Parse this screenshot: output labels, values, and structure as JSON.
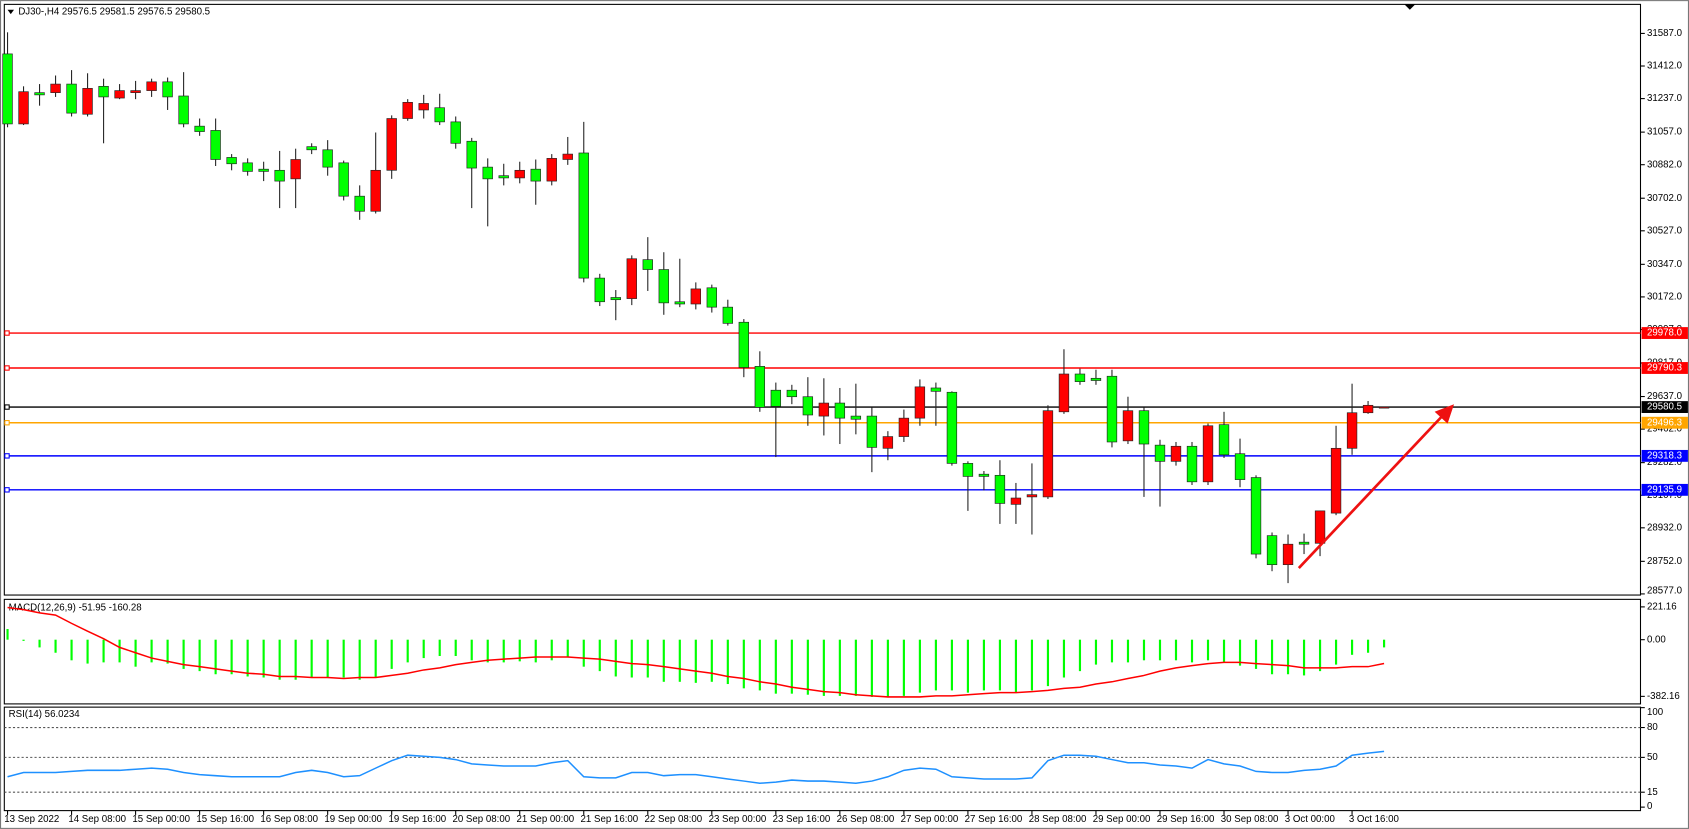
{
  "chart_data": [
    {
      "type": "candlestick",
      "title": "DJ30-,H4  29576.5 29581.5 29576.5 29580.5",
      "categories": [
        "13 Sep 2022",
        null,
        null,
        null,
        "14 Sep 08:00",
        null,
        null,
        null,
        "15 Sep 00:00",
        null,
        null,
        null,
        "15 Sep 16:00",
        null,
        null,
        null,
        "16 Sep 08:00",
        null,
        null,
        null,
        "19 Sep 00:00",
        null,
        null,
        null,
        "19 Sep 16:00",
        null,
        null,
        null,
        "20 Sep 08:00",
        null,
        null,
        null,
        "21 Sep 00:00",
        null,
        null,
        null,
        "21 Sep 16:00",
        null,
        null,
        null,
        "22 Sep 08:00",
        null,
        null,
        null,
        "23 Sep 00:00",
        null,
        null,
        null,
        "23 Sep 16:00",
        null,
        null,
        null,
        "26 Sep 08:00",
        null,
        null,
        null,
        "27 Sep 00:00",
        null,
        null,
        null,
        "27 Sep 16:00",
        null,
        null,
        null,
        "28 Sep 08:00",
        null,
        null,
        null,
        "29 Sep 00:00",
        null,
        null,
        null,
        "29 Sep 16:00",
        null,
        null,
        null,
        "30 Sep 08:00",
        null,
        null,
        null,
        "3 Oct 00:00",
        null,
        null,
        null,
        "3 Oct 16:00",
        null,
        null
      ],
      "open": [
        31477,
        31101,
        31269,
        31269,
        31315,
        31153,
        31303,
        31240,
        31269,
        31280,
        31327,
        31251,
        31089,
        31066,
        30921,
        30892,
        30858,
        30852,
        30806,
        30979,
        30962,
        30892,
        30713,
        30632,
        30852,
        31130,
        31176,
        31188,
        31112,
        31008,
        30869,
        30823,
        30811,
        30858,
        30794,
        30910,
        30945,
        30273,
        30169,
        30163,
        30372,
        30319,
        30146,
        30134,
        30221,
        30117,
        30036,
        29799,
        29671,
        29671,
        29636,
        29532,
        29602,
        29532,
        29532,
        29359,
        29422,
        29521,
        29683,
        29660,
        29278,
        29220,
        29214,
        29058,
        29098,
        29098,
        29555,
        29758,
        29735,
        29746,
        29399,
        29561,
        29376,
        29289,
        29370,
        29179,
        29486,
        29330,
        29202,
        28890,
        28734,
        28855,
        28849,
        29011,
        29359,
        29550,
        29576.5
      ],
      "high": [
        31593,
        31303,
        31315,
        31361,
        31390,
        31373,
        31344,
        31315,
        31332,
        31344,
        31350,
        31379,
        31130,
        31130,
        30939,
        30916,
        30898,
        30956,
        30968,
        30997,
        31014,
        30904,
        30771,
        31055,
        31147,
        31234,
        31257,
        31263,
        31141,
        31026,
        30916,
        30887,
        30898,
        30910,
        30939,
        31031,
        31112,
        30296,
        30209,
        30395,
        30493,
        30412,
        30377,
        30250,
        30238,
        30157,
        30053,
        29880,
        29712,
        29700,
        29741,
        29735,
        29683,
        29706,
        29579,
        29451,
        29567,
        29729,
        29712,
        29665,
        29289,
        29237,
        29295,
        29173,
        29278,
        29590,
        29891,
        29787,
        29781,
        29781,
        29636,
        29579,
        29405,
        29393,
        29393,
        29492,
        29555,
        29411,
        29214,
        28907,
        28896,
        28901,
        29023,
        29480,
        29706,
        29613,
        29581.5
      ],
      "low": [
        31083,
        31095,
        31199,
        31246,
        31141,
        31141,
        30997,
        31234,
        31234,
        31246,
        31176,
        31083,
        31037,
        30875,
        30852,
        30823,
        30794,
        30649,
        30649,
        30939,
        30823,
        30690,
        30586,
        30620,
        30806,
        31118,
        31130,
        31095,
        30968,
        30649,
        30551,
        30771,
        30782,
        30667,
        30771,
        30881,
        30250,
        30123,
        30047,
        30128,
        30204,
        30076,
        30117,
        30105,
        30088,
        30018,
        29741,
        29555,
        29312,
        29596,
        29480,
        29428,
        29382,
        29434,
        29231,
        29295,
        29393,
        29480,
        29480,
        29266,
        29023,
        29133,
        28953,
        28953,
        28896,
        29087,
        29544,
        29700,
        29700,
        29364,
        29382,
        29098,
        29046,
        29266,
        29162,
        29162,
        29307,
        29150,
        28768,
        28699,
        28635,
        28791,
        28780,
        29000,
        29324,
        29544,
        29576.5
      ],
      "close": [
        31101,
        31274,
        31257,
        31315,
        31159,
        31292,
        31246,
        31280,
        31280,
        31327,
        31246,
        31101,
        31060,
        30910,
        30887,
        30846,
        30846,
        30794,
        30910,
        30962,
        30869,
        30713,
        30632,
        30852,
        31130,
        31217,
        31211,
        31112,
        30997,
        30864,
        30806,
        30811,
        30852,
        30794,
        30916,
        30939,
        30273,
        30146,
        30157,
        30377,
        30319,
        30140,
        30134,
        30215,
        30117,
        30030,
        29793,
        29579,
        29584,
        29636,
        29538,
        29602,
        29521,
        29515,
        29364,
        29422,
        29521,
        29689,
        29665,
        29278,
        29208,
        29208,
        29063,
        29092,
        29110,
        29561,
        29758,
        29717,
        29723,
        29393,
        29561,
        29382,
        29289,
        29370,
        29179,
        29480,
        29324,
        29191,
        28791,
        28734,
        28844,
        28844,
        29023,
        29359,
        29550,
        29590,
        29580.5
      ],
      "up_color": "#ff0000",
      "down_color": "#00ff00",
      "ylim": [
        28571,
        31743
      ],
      "yticks": [
        {
          "value": 31587,
          "label": "31587.0"
        },
        {
          "value": 31412,
          "label": "31412.0"
        },
        {
          "value": 31237,
          "label": "31237.0"
        },
        {
          "value": 31057,
          "label": "31057.0"
        },
        {
          "value": 30882,
          "label": "30882.0"
        },
        {
          "value": 30702,
          "label": "30702.0"
        },
        {
          "value": 30527,
          "label": "30527.0"
        },
        {
          "value": 30347,
          "label": "30347.0"
        },
        {
          "value": 30172,
          "label": "30172.0"
        },
        {
          "value": 29997,
          "label": "29997.0"
        },
        {
          "value": 29817,
          "label": "29817.0"
        },
        {
          "value": 29637,
          "label": "29637.0"
        },
        {
          "value": 29462,
          "label": "29462.0"
        },
        {
          "value": 29282,
          "label": "29282.0"
        },
        {
          "value": 29107,
          "label": "29107.0"
        },
        {
          "value": 28932,
          "label": "28932.0"
        },
        {
          "value": 28752,
          "label": "28752.0"
        },
        {
          "value": 28577,
          "label": "28577.0"
        }
      ],
      "hlines": [
        {
          "value": 29978,
          "label": "29978.0",
          "color": "#ff0000"
        },
        {
          "value": 29790.3,
          "color": "#ff0000"
        },
        {
          "value": 29580.5,
          "color": "#000000"
        },
        {
          "value": 29496.3,
          "color": "#ffa500"
        },
        {
          "value": 29318.3,
          "color": "#0000ff"
        },
        {
          "value": 29135.9,
          "color": "#0000ff"
        }
      ]
    },
    {
      "type": "macd",
      "title": "MACD(12,26,9) -51.95 -160.28",
      "series": [
        {
          "style": "bar",
          "color": "#00ff00",
          "values": [
            72,
            -8,
            -52,
            -88,
            -139,
            -161,
            -153,
            -153,
            -182,
            -153,
            -161,
            -197,
            -212,
            -233,
            -233,
            -248,
            -255,
            -270,
            -270,
            -255,
            -255,
            -255,
            -270,
            -255,
            -197,
            -153,
            -124,
            -110,
            -110,
            -139,
            -153,
            -153,
            -146,
            -153,
            -139,
            -117,
            -182,
            -212,
            -248,
            -255,
            -255,
            -284,
            -284,
            -291,
            -284,
            -299,
            -328,
            -342,
            -364,
            -364,
            -371,
            -379,
            -379,
            -379,
            -386,
            -386,
            -379,
            -357,
            -342,
            -342,
            -357,
            -342,
            -342,
            -357,
            -342,
            -313,
            -255,
            -212,
            -168,
            -153,
            -153,
            -139,
            -139,
            -139,
            -153,
            -139,
            -153,
            -175,
            -197,
            -233,
            -233,
            -241,
            -212,
            -168,
            -102,
            -88,
            -51.95
          ]
        },
        {
          "style": "line",
          "color": "#ff0000",
          "values": [
            217,
            203,
            181,
            166,
            110,
            57,
            7,
            -52,
            -88,
            -124,
            -146,
            -168,
            -182,
            -197,
            -212,
            -226,
            -233,
            -248,
            -248,
            -255,
            -255,
            -262,
            -255,
            -255,
            -241,
            -226,
            -204,
            -190,
            -168,
            -153,
            -139,
            -131,
            -124,
            -117,
            -117,
            -117,
            -124,
            -131,
            -146,
            -161,
            -168,
            -182,
            -197,
            -212,
            -226,
            -248,
            -262,
            -284,
            -299,
            -321,
            -335,
            -350,
            -357,
            -371,
            -379,
            -386,
            -386,
            -386,
            -379,
            -379,
            -371,
            -364,
            -357,
            -357,
            -350,
            -342,
            -328,
            -321,
            -299,
            -284,
            -262,
            -241,
            -212,
            -190,
            -175,
            -161,
            -153,
            -153,
            -161,
            -168,
            -175,
            -190,
            -190,
            -190,
            -182,
            -182,
            -160.28
          ]
        }
      ],
      "ylim": [
        -433,
        272
      ],
      "yticks": [
        221.16,
        {
          "value": 0,
          "label": "0.00"
        },
        -382.16
      ]
    },
    {
      "type": "line",
      "title": "RSI(14) 56.0234",
      "series": [
        {
          "color": "#1e90ff",
          "values": [
            30.5,
            34.8,
            34.8,
            34.8,
            35.9,
            37.0,
            37.0,
            37.0,
            38.1,
            39.2,
            38.1,
            34.8,
            32.7,
            31.6,
            30.5,
            30.5,
            30.5,
            30.5,
            34.8,
            37.0,
            34.8,
            30.5,
            31.6,
            39.2,
            46.7,
            52.2,
            51.1,
            50.0,
            47.8,
            43.5,
            42.4,
            41.3,
            41.3,
            41.3,
            44.6,
            46.7,
            30.5,
            29.4,
            29.4,
            34.8,
            34.8,
            31.6,
            32.7,
            32.7,
            30.5,
            28.3,
            26.2,
            24.0,
            25.1,
            27.2,
            26.2,
            26.2,
            25.1,
            24.0,
            26.2,
            30.5,
            37.0,
            39.2,
            38.1,
            30.5,
            29.4,
            28.3,
            28.3,
            28.3,
            29.4,
            46.7,
            52.2,
            52.2,
            51.1,
            47.8,
            44.6,
            44.6,
            42.4,
            41.3,
            39.2,
            47.8,
            43.5,
            41.3,
            35.9,
            34.8,
            34.8,
            37.0,
            38.1,
            41.3,
            52.2,
            54.3,
            56.0234
          ]
        }
      ],
      "ylim": [
        -3.5,
        100.5
      ],
      "yticks": [
        100,
        80,
        50,
        15,
        0
      ],
      "levels": [
        80,
        50,
        15
      ]
    }
  ]
}
